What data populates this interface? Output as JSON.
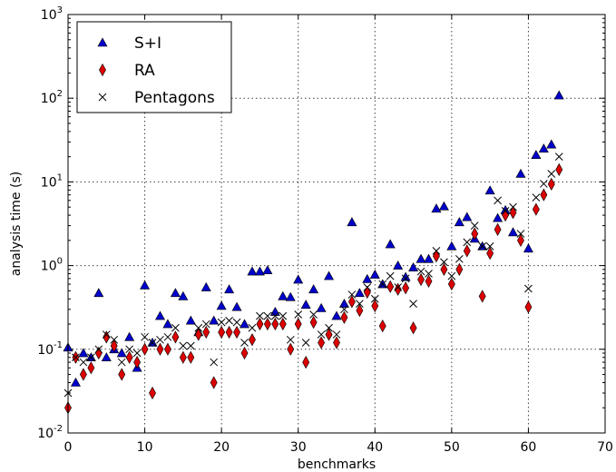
{
  "chart_data": {
    "type": "scatter",
    "xlabel": "benchmarks",
    "ylabel": "analysis time (s)",
    "xlim": [
      0,
      70
    ],
    "ylim": [
      0.01,
      1000
    ],
    "yscale": "log",
    "grid": true,
    "legend_position": "top-left",
    "x_ticks": [
      {
        "value": 0,
        "label": "0"
      },
      {
        "value": 10,
        "label": "10"
      },
      {
        "value": 20,
        "label": "20"
      },
      {
        "value": 30,
        "label": "30"
      },
      {
        "value": 40,
        "label": "40"
      },
      {
        "value": 50,
        "label": "50"
      },
      {
        "value": 60,
        "label": "60"
      },
      {
        "value": 70,
        "label": "70"
      }
    ],
    "y_ticks": [
      {
        "value": 0.01,
        "base": "10",
        "exp": "-2"
      },
      {
        "value": 0.1,
        "base": "10",
        "exp": "-1"
      },
      {
        "value": 1,
        "base": "10",
        "exp": "0"
      },
      {
        "value": 10,
        "base": "10",
        "exp": "1"
      },
      {
        "value": 100,
        "base": "10",
        "exp": "2"
      },
      {
        "value": 1000,
        "base": "10",
        "exp": "3"
      }
    ],
    "series": [
      {
        "name": "S+I",
        "marker": "triangle",
        "color": "#0000cc",
        "points": [
          [
            0,
            0.105
          ],
          [
            1,
            0.04
          ],
          [
            2,
            0.09
          ],
          [
            3,
            0.08
          ],
          [
            4,
            0.47
          ],
          [
            5,
            0.08
          ],
          [
            6,
            0.1
          ],
          [
            7,
            0.09
          ],
          [
            8,
            0.14
          ],
          [
            9,
            0.06
          ],
          [
            10,
            0.58
          ],
          [
            11,
            0.12
          ],
          [
            12,
            0.25
          ],
          [
            13,
            0.2
          ],
          [
            14,
            0.47
          ],
          [
            15,
            0.43
          ],
          [
            16,
            0.22
          ],
          [
            17,
            0.16
          ],
          [
            18,
            0.55
          ],
          [
            19,
            0.22
          ],
          [
            20,
            0.33
          ],
          [
            21,
            0.52
          ],
          [
            22,
            0.32
          ],
          [
            23,
            0.2
          ],
          [
            24,
            0.85
          ],
          [
            25,
            0.85
          ],
          [
            26,
            0.88
          ],
          [
            27,
            0.28
          ],
          [
            28,
            0.43
          ],
          [
            29,
            0.42
          ],
          [
            30,
            0.68
          ],
          [
            31,
            0.34
          ],
          [
            32,
            0.52
          ],
          [
            33,
            0.31
          ],
          [
            34,
            0.75
          ],
          [
            35,
            0.25
          ],
          [
            36,
            0.35
          ],
          [
            37,
            3.3
          ],
          [
            38,
            0.47
          ],
          [
            39,
            0.69
          ],
          [
            40,
            0.78
          ],
          [
            41,
            0.6
          ],
          [
            42,
            1.8
          ],
          [
            43,
            1.0
          ],
          [
            44,
            0.73
          ],
          [
            45,
            0.95
          ],
          [
            46,
            1.2
          ],
          [
            47,
            1.2
          ],
          [
            48,
            4.8
          ],
          [
            49,
            5.1
          ],
          [
            50,
            1.7
          ],
          [
            51,
            3.3
          ],
          [
            52,
            3.8
          ],
          [
            53,
            2.1
          ],
          [
            54,
            1.7
          ],
          [
            55,
            7.9
          ],
          [
            56,
            3.7
          ],
          [
            57,
            4.6
          ],
          [
            58,
            2.5
          ],
          [
            59,
            12.5
          ],
          [
            60,
            1.6
          ],
          [
            61,
            21
          ],
          [
            62,
            25
          ],
          [
            63,
            28
          ],
          [
            64,
            108
          ]
        ]
      },
      {
        "name": "RA",
        "marker": "diamond",
        "color": "#dd0000",
        "points": [
          [
            0,
            0.02
          ],
          [
            1,
            0.08
          ],
          [
            2,
            0.05
          ],
          [
            3,
            0.06
          ],
          [
            4,
            0.09
          ],
          [
            5,
            0.14
          ],
          [
            6,
            0.11
          ],
          [
            7,
            0.05
          ],
          [
            8,
            0.08
          ],
          [
            9,
            0.07
          ],
          [
            10,
            0.1
          ],
          [
            11,
            0.03
          ],
          [
            12,
            0.1
          ],
          [
            13,
            0.1
          ],
          [
            14,
            0.14
          ],
          [
            15,
            0.08
          ],
          [
            16,
            0.08
          ],
          [
            17,
            0.15
          ],
          [
            18,
            0.16
          ],
          [
            19,
            0.04
          ],
          [
            20,
            0.16
          ],
          [
            21,
            0.16
          ],
          [
            22,
            0.16
          ],
          [
            23,
            0.09
          ],
          [
            24,
            0.13
          ],
          [
            25,
            0.2
          ],
          [
            26,
            0.2
          ],
          [
            27,
            0.2
          ],
          [
            28,
            0.2
          ],
          [
            29,
            0.1
          ],
          [
            30,
            0.2
          ],
          [
            31,
            0.07
          ],
          [
            32,
            0.21
          ],
          [
            33,
            0.12
          ],
          [
            34,
            0.15
          ],
          [
            35,
            0.12
          ],
          [
            36,
            0.24
          ],
          [
            37,
            0.37
          ],
          [
            38,
            0.29
          ],
          [
            39,
            0.48
          ],
          [
            40,
            0.33
          ],
          [
            41,
            0.19
          ],
          [
            42,
            0.56
          ],
          [
            43,
            0.52
          ],
          [
            44,
            0.54
          ],
          [
            45,
            0.18
          ],
          [
            46,
            0.68
          ],
          [
            47,
            0.65
          ],
          [
            48,
            1.3
          ],
          [
            49,
            0.9
          ],
          [
            50,
            0.6
          ],
          [
            51,
            0.9
          ],
          [
            52,
            1.5
          ],
          [
            53,
            2.4
          ],
          [
            54,
            0.43
          ],
          [
            55,
            1.4
          ],
          [
            56,
            2.7
          ],
          [
            57,
            4.0
          ],
          [
            58,
            4.3
          ],
          [
            59,
            2.0
          ],
          [
            60,
            0.32
          ],
          [
            61,
            4.7
          ],
          [
            62,
            7.0
          ],
          [
            63,
            9.4
          ],
          [
            64,
            14
          ]
        ]
      },
      {
        "name": "Pentagons",
        "marker": "x",
        "color": "#000000",
        "points": [
          [
            0,
            0.03
          ],
          [
            1,
            0.08
          ],
          [
            2,
            0.07
          ],
          [
            3,
            0.08
          ],
          [
            4,
            0.1
          ],
          [
            5,
            0.15
          ],
          [
            6,
            0.13
          ],
          [
            7,
            0.07
          ],
          [
            8,
            0.1
          ],
          [
            9,
            0.09
          ],
          [
            10,
            0.14
          ],
          [
            11,
            0.12
          ],
          [
            12,
            0.13
          ],
          [
            13,
            0.14
          ],
          [
            14,
            0.18
          ],
          [
            15,
            0.11
          ],
          [
            16,
            0.11
          ],
          [
            17,
            0.18
          ],
          [
            18,
            0.2
          ],
          [
            19,
            0.07
          ],
          [
            20,
            0.21
          ],
          [
            21,
            0.22
          ],
          [
            22,
            0.21
          ],
          [
            23,
            0.12
          ],
          [
            24,
            0.18
          ],
          [
            25,
            0.25
          ],
          [
            26,
            0.25
          ],
          [
            27,
            0.25
          ],
          [
            28,
            0.25
          ],
          [
            29,
            0.13
          ],
          [
            30,
            0.26
          ],
          [
            31,
            0.12
          ],
          [
            32,
            0.26
          ],
          [
            33,
            0.15
          ],
          [
            34,
            0.18
          ],
          [
            35,
            0.15
          ],
          [
            36,
            0.3
          ],
          [
            37,
            0.45
          ],
          [
            38,
            0.35
          ],
          [
            39,
            0.55
          ],
          [
            40,
            0.4
          ],
          [
            41,
            0.6
          ],
          [
            42,
            0.75
          ],
          [
            43,
            0.55
          ],
          [
            44,
            0.7
          ],
          [
            45,
            0.35
          ],
          [
            46,
            0.85
          ],
          [
            47,
            0.8
          ],
          [
            48,
            1.5
          ],
          [
            49,
            1.1
          ],
          [
            50,
            0.75
          ],
          [
            51,
            1.2
          ],
          [
            52,
            1.9
          ],
          [
            53,
            3.0
          ],
          [
            54,
            1.7
          ],
          [
            55,
            1.7
          ],
          [
            56,
            6.0
          ],
          [
            57,
            4.5
          ],
          [
            58,
            5.0
          ],
          [
            59,
            2.4
          ],
          [
            60,
            0.53
          ],
          [
            61,
            6.5
          ],
          [
            62,
            9.5
          ],
          [
            63,
            12.5
          ],
          [
            64,
            20
          ]
        ]
      }
    ]
  }
}
